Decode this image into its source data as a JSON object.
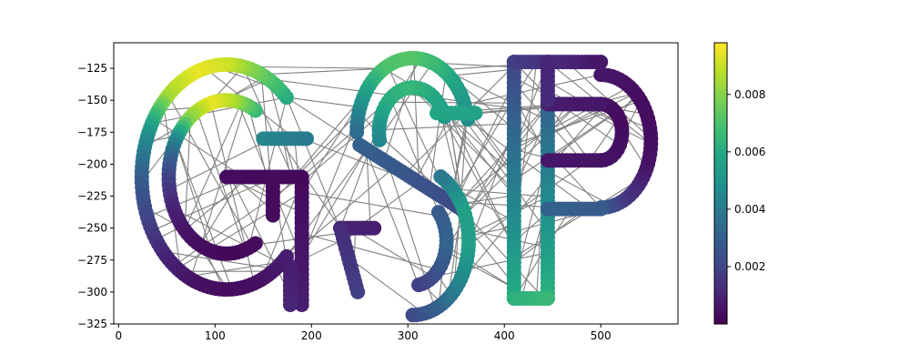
{
  "chart_data": {
    "type": "scatter",
    "title": "",
    "xlabel": "",
    "ylabel": "",
    "xlim": [
      -5,
      580
    ],
    "ylim": [
      -325,
      -105
    ],
    "grid": false,
    "x_ticks": [
      0,
      100,
      200,
      300,
      400,
      500
    ],
    "y_ticks": [
      -125,
      -150,
      -175,
      -200,
      -225,
      -250,
      -275,
      -300,
      -325
    ],
    "x_tick_labels": [
      "0",
      "100",
      "200",
      "300",
      "400",
      "500"
    ],
    "y_tick_labels": [
      "−125",
      "−150",
      "−175",
      "−200",
      "−225",
      "−250",
      "−275",
      "−300",
      "−325"
    ],
    "colormap": "viridis",
    "colorbar": {
      "range": [
        0,
        0.0098
      ],
      "ticks": [
        0.002,
        0.004,
        0.006,
        0.008
      ],
      "tick_labels": [
        "0.002",
        "0.004",
        "0.006",
        "0.008"
      ]
    },
    "edge_color": "#808080",
    "letters": [
      {
        "letter": "G",
        "strokes": [
          {
            "kind": "arc",
            "cx": 112,
            "cy": -210,
            "r": 88,
            "start_deg": 45,
            "end_deg": 315,
            "values": [
              0.006,
              0.0075,
              0.009,
              0.0095,
              0.0085,
              0.005,
              0.003,
              0.002,
              0.001,
              0.0005,
              0.0003,
              0.0004,
              0.0008
            ]
          },
          {
            "kind": "arc",
            "cx": 112,
            "cy": -210,
            "r": 60,
            "start_deg": 60,
            "end_deg": 300,
            "values": [
              0.0065,
              0.0085,
              0.0095,
              0.008,
              0.004,
              0.002,
              0.001,
              0.0005,
              0.0003,
              0.0002,
              0.0003
            ]
          },
          {
            "kind": "line",
            "points": [
              [
                112,
                -210
              ],
              [
                190,
                -210
              ]
            ],
            "values": [
              0.0003,
              0.0002
            ]
          },
          {
            "kind": "line",
            "points": [
              [
                160,
                -210
              ],
              [
                160,
                -240
              ]
            ],
            "values": [
              0.0003,
              0.0003
            ]
          },
          {
            "kind": "line",
            "points": [
              [
                190,
                -210
              ],
              [
                190,
                -310
              ]
            ],
            "values": [
              0.0002,
              0.0008
            ]
          },
          {
            "kind": "line",
            "points": [
              [
                178,
                -280
              ],
              [
                178,
                -310
              ]
            ],
            "values": [
              0.0008,
              0.001
            ]
          },
          {
            "kind": "line",
            "points": [
              [
                150,
                -180
              ],
              [
                195,
                -180
              ]
            ],
            "values": [
              0.0045,
              0.004
            ]
          }
        ]
      },
      {
        "letter": "S",
        "strokes": [
          {
            "kind": "arc",
            "cx": 305,
            "cy": -175,
            "r": 58,
            "start_deg": 10,
            "end_deg": 180,
            "values": [
              0.0048,
              0.0055,
              0.0065,
              0.0072,
              0.007,
              0.0055,
              0.0035
            ]
          },
          {
            "kind": "arc",
            "cx": 305,
            "cy": -175,
            "r": 35,
            "start_deg": 20,
            "end_deg": 190,
            "values": [
              0.0052,
              0.006,
              0.0065,
              0.006,
              0.0045
            ]
          },
          {
            "kind": "line",
            "points": [
              [
                250,
                -185
              ],
              [
                355,
                -235
              ]
            ],
            "values": [
              0.003,
              0.0022
            ]
          },
          {
            "kind": "arc",
            "cx": 305,
            "cy": -260,
            "r": 58,
            "start_deg": -90,
            "end_deg": 60,
            "values": [
              0.0022,
              0.003,
              0.0045,
              0.0055,
              0.0055,
              0.004
            ]
          },
          {
            "kind": "arc",
            "cx": 305,
            "cy": -260,
            "r": 35,
            "start_deg": -80,
            "end_deg": 40,
            "values": [
              0.0018,
              0.0024,
              0.0032,
              0.0028
            ]
          },
          {
            "kind": "line",
            "points": [
              [
                230,
                -250
              ],
              [
                265,
                -250
              ]
            ],
            "values": [
              0.001,
              0.0008
            ]
          },
          {
            "kind": "line",
            "points": [
              [
                230,
                -250
              ],
              [
                248,
                -300
              ]
            ],
            "values": [
              0.0012,
              0.0018
            ]
          },
          {
            "kind": "line",
            "points": [
              [
                330,
                -160
              ],
              [
                370,
                -160
              ]
            ],
            "values": [
              0.0058,
              0.0056
            ]
          }
        ]
      },
      {
        "letter": "P",
        "strokes": [
          {
            "kind": "line",
            "points": [
              [
                410,
                -120
              ],
              [
                410,
                -305
              ]
            ],
            "values": [
              0.002,
              0.006
            ]
          },
          {
            "kind": "line",
            "points": [
              [
                445,
                -150
              ],
              [
                445,
                -305
              ]
            ],
            "values": [
              0.003,
              0.0062
            ]
          },
          {
            "kind": "line",
            "points": [
              [
                410,
                -305
              ],
              [
                445,
                -305
              ]
            ],
            "values": [
              0.0062,
              0.0065
            ]
          },
          {
            "kind": "line",
            "points": [
              [
                410,
                -120
              ],
              [
                500,
                -120
              ]
            ],
            "values": [
              0.0018,
              0.0006
            ]
          },
          {
            "kind": "arc",
            "cx": 500,
            "cy": -182,
            "r": 52,
            "start_deg": -90,
            "end_deg": 90,
            "values": [
              0.003,
              0.0015,
              0.0005,
              0.0003,
              0.0004,
              0.0006
            ]
          },
          {
            "kind": "arc",
            "cx": 500,
            "cy": -175,
            "r": 22,
            "start_deg": -90,
            "end_deg": 90,
            "values": [
              0.0006,
              0.0004,
              0.0003,
              0.0004
            ]
          },
          {
            "kind": "line",
            "points": [
              [
                445,
                -153
              ],
              [
                500,
                -153
              ]
            ],
            "values": [
              0.0008,
              0.0006
            ]
          },
          {
            "kind": "line",
            "points": [
              [
                445,
                -197
              ],
              [
                500,
                -197
              ]
            ],
            "values": [
              0.0006,
              0.0005
            ]
          },
          {
            "kind": "line",
            "points": [
              [
                445,
                -235
              ],
              [
                500,
                -235
              ]
            ],
            "values": [
              0.003,
              0.0028
            ]
          },
          {
            "kind": "line",
            "points": [
              [
                445,
                -120
              ],
              [
                445,
                -150
              ]
            ],
            "values": [
              0.001,
              0.0012
            ]
          }
        ]
      }
    ]
  }
}
